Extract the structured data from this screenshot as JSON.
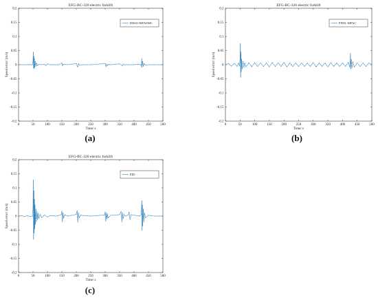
{
  "chart_data": [
    {
      "type": "line",
      "letter": "(a)",
      "title": "EFG-BC-320 electric forklift",
      "xlabel": "Time/ s",
      "ylabel": "Speed error/ (m/s)",
      "xlim": [
        0,
        500
      ],
      "ylim": [
        -0.2,
        0.2
      ],
      "xticks": [
        0,
        50,
        100,
        150,
        200,
        250,
        300,
        350,
        400,
        450,
        500
      ],
      "yticks": [
        -0.2,
        -0.15,
        -0.1,
        -0.05,
        0,
        0.05,
        0.1,
        0.15,
        0.2
      ],
      "legend_position": "top-right",
      "line_color": "#1f77b4",
      "series": [
        {
          "name": "DESO-MFASMC",
          "x": [
            0,
            20,
            40,
            48,
            50,
            51,
            52,
            53,
            54,
            55,
            56,
            58,
            60,
            62,
            65,
            70,
            80,
            90,
            95,
            100,
            110,
            120,
            140,
            150,
            152,
            155,
            170,
            200,
            205,
            208,
            212,
            220,
            250,
            300,
            303,
            305,
            308,
            312,
            320,
            350,
            360,
            362,
            365,
            380,
            400,
            420,
            425,
            427,
            428,
            430,
            432,
            435,
            440,
            450,
            470,
            500
          ],
          "values": [
            0,
            0,
            0,
            0,
            0.012,
            0.045,
            -0.012,
            0.03,
            -0.015,
            0.022,
            -0.01,
            0.012,
            -0.006,
            0.006,
            -0.003,
            0.002,
            0,
            0.001,
            -0.003,
            0.003,
            0,
            0,
            0,
            0.006,
            -0.004,
            0.002,
            0,
            0.004,
            -0.008,
            0.003,
            -0.002,
            0,
            0,
            0.004,
            -0.006,
            0.002,
            -0.003,
            0.001,
            0,
            0.003,
            -0.004,
            0.002,
            0,
            0,
            0,
            0.002,
            -0.005,
            0.022,
            -0.01,
            0.012,
            -0.006,
            0.004,
            -0.002,
            0,
            0,
            0
          ]
        }
      ]
    },
    {
      "type": "line",
      "letter": "(b)",
      "title": "EFG-BC-320 electric forklift",
      "xlabel": "Time/ s",
      "ylabel": "Speed error/ (m/s)",
      "xlim": [
        0,
        500
      ],
      "ylim": [
        -0.2,
        0.2
      ],
      "xticks": [
        0,
        50,
        100,
        150,
        200,
        250,
        300,
        350,
        400,
        450,
        500
      ],
      "yticks": [
        -0.2,
        -0.15,
        -0.1,
        -0.05,
        0,
        0.05,
        0.1,
        0.15,
        0.2
      ],
      "legend_position": "top-right",
      "line_color": "#1f77b4",
      "series": [
        {
          "name": "FFDL-MFAC",
          "x": [
            0,
            10,
            20,
            30,
            40,
            45,
            48,
            50,
            51,
            52,
            53,
            54,
            55,
            57,
            60,
            63,
            66,
            70,
            80,
            90,
            100,
            110,
            120,
            130,
            140,
            150,
            160,
            170,
            180,
            190,
            200,
            210,
            220,
            230,
            240,
            250,
            260,
            270,
            280,
            290,
            300,
            310,
            320,
            330,
            340,
            350,
            360,
            370,
            380,
            390,
            400,
            410,
            420,
            425,
            427,
            428,
            430,
            432,
            435,
            440,
            450,
            460,
            470,
            480,
            490,
            500
          ],
          "values": [
            0,
            0.004,
            -0.005,
            0.005,
            -0.006,
            0.006,
            -0.005,
            0.02,
            0.075,
            -0.045,
            0.045,
            -0.025,
            0.02,
            -0.015,
            0.012,
            -0.01,
            0.008,
            -0.008,
            0.007,
            -0.007,
            0.007,
            -0.006,
            0.006,
            -0.006,
            0.006,
            -0.008,
            0.008,
            -0.006,
            0.006,
            -0.006,
            0.008,
            -0.008,
            0.006,
            -0.006,
            0.006,
            -0.006,
            0.006,
            -0.006,
            0.006,
            -0.006,
            0.008,
            -0.008,
            0.006,
            -0.006,
            0.006,
            -0.008,
            0.007,
            -0.006,
            0.006,
            -0.006,
            0.006,
            -0.006,
            0.008,
            -0.01,
            0.04,
            -0.015,
            0.02,
            -0.012,
            0.01,
            -0.008,
            0.006,
            -0.006,
            0.006,
            -0.006,
            0.006,
            0
          ]
        }
      ]
    },
    {
      "type": "line",
      "letter": "(c)",
      "title": "EFG-BC-320 electric forklift",
      "xlabel": "Time/ s",
      "ylabel": "Speed error/ (m/s)",
      "xlim": [
        0,
        500
      ],
      "ylim": [
        -0.2,
        0.2
      ],
      "xticks": [
        0,
        50,
        100,
        150,
        200,
        250,
        300,
        350,
        400,
        450,
        500
      ],
      "yticks": [
        -0.2,
        -0.15,
        -0.1,
        -0.05,
        0,
        0.05,
        0.1,
        0.15,
        0.2
      ],
      "legend_position": "top-right",
      "line_color": "#1f77b4",
      "series": [
        {
          "name": "PID",
          "x": [
            0,
            10,
            20,
            30,
            40,
            48,
            50,
            51,
            52,
            53,
            54,
            55,
            56,
            57,
            58,
            60,
            62,
            64,
            66,
            68,
            70,
            75,
            80,
            90,
            100,
            110,
            130,
            148,
            150,
            152,
            154,
            156,
            160,
            170,
            200,
            203,
            205,
            207,
            210,
            215,
            250,
            298,
            300,
            302,
            304,
            306,
            308,
            310,
            320,
            350,
            355,
            358,
            360,
            362,
            365,
            370,
            380,
            383,
            386,
            390,
            420,
            425,
            427,
            428,
            429,
            430,
            432,
            434,
            436,
            440,
            450,
            470,
            500
          ],
          "values": [
            0,
            0.002,
            -0.002,
            0.002,
            -0.002,
            0,
            0.03,
            0.128,
            -0.082,
            0.09,
            -0.06,
            0.06,
            -0.045,
            0.04,
            -0.03,
            0.025,
            -0.02,
            0.016,
            -0.012,
            0.01,
            -0.008,
            0.006,
            -0.005,
            0.004,
            -0.003,
            0.002,
            0,
            0.005,
            0.018,
            -0.02,
            0.012,
            -0.008,
            0.005,
            0,
            0.006,
            0.02,
            -0.022,
            0.012,
            -0.006,
            0.003,
            0,
            0.004,
            0.015,
            -0.018,
            0.012,
            -0.01,
            0.008,
            -0.006,
            0.003,
            0.005,
            0.016,
            -0.02,
            0.012,
            -0.01,
            0.006,
            0,
            0.004,
            0.015,
            -0.012,
            0.005,
            0,
            0.006,
            0.055,
            -0.05,
            0.04,
            -0.035,
            0.025,
            -0.02,
            0.012,
            -0.006,
            0.003,
            0,
            0
          ]
        }
      ]
    }
  ]
}
